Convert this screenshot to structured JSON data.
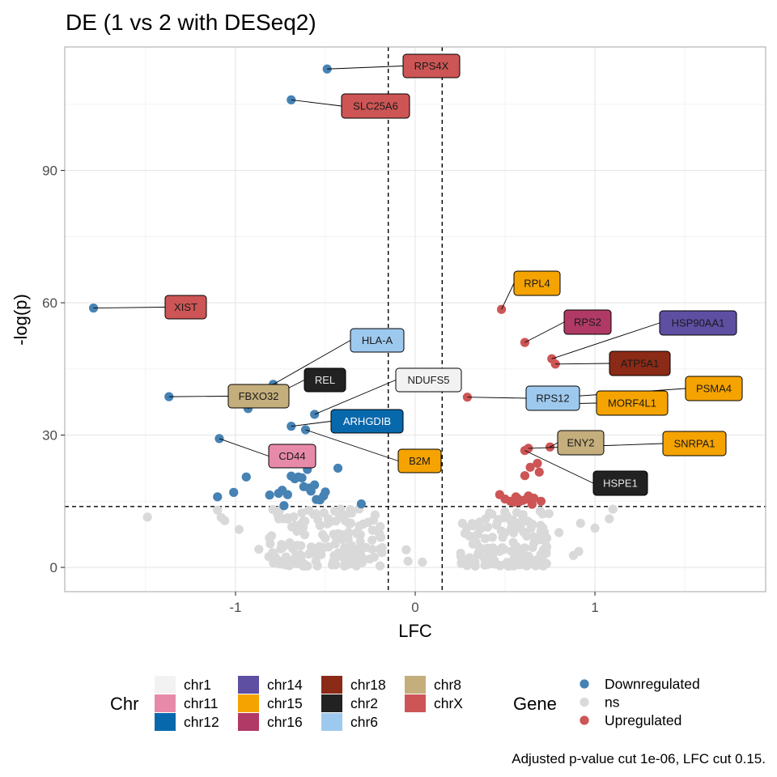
{
  "chart_data": {
    "type": "scatter",
    "title": "DE (1 vs 2 with DESeq2)",
    "xlabel": "LFC",
    "ylabel": "-log(p)",
    "xlim": [
      -1.95,
      1.95
    ],
    "ylim": [
      -5.5,
      118
    ],
    "x_ticks": [
      -1,
      0,
      1
    ],
    "x_tick_labels": [
      "-1",
      "0",
      "1"
    ],
    "y_ticks": [
      0,
      30,
      60,
      90
    ],
    "y_tick_labels": [
      "0",
      "30",
      "60",
      "90"
    ],
    "grid": true,
    "thresholds": {
      "lfc": [
        -0.15,
        0.15
      ],
      "neg_log_p": 13.8
    },
    "caption": "Adjusted p-value cut 1e-06, LFC cut 0.15.",
    "gene_colors": {
      "Downregulated": "#4682b4",
      "ns": "#d9d9d9",
      "Upregulated": "#cd5555"
    },
    "chr_colors": {
      "chr1": "#f2f2f2",
      "chr11": "#e78aa9",
      "chr12": "#0868ac",
      "chr14": "#5e4fa2",
      "chr15": "#f5a300",
      "chr16": "#b03a65",
      "chr18": "#8b2a16",
      "chr2": "#222222",
      "chr6": "#9ec9ef",
      "chr8": "#c4ae7c",
      "chrX": "#cd5555"
    },
    "legend": {
      "chr_title": "Chr",
      "chr_entries": [
        "chr1",
        "chr11",
        "chr12",
        "chr14",
        "chr15",
        "chr16",
        "chr18",
        "chr2",
        "chr6",
        "chr8",
        "chrX"
      ],
      "gene_title": "Gene",
      "gene_entries": [
        "Downregulated",
        "ns",
        "Upregulated"
      ],
      "position": "bottom"
    },
    "labeled_points": [
      {
        "gene": "RPS4X",
        "x": -0.49,
        "y": 113.0,
        "chr": "chrX",
        "status": "Downregulated"
      },
      {
        "gene": "SLC25A6",
        "x": -0.69,
        "y": 106.0,
        "chr": "chrX",
        "status": "Downregulated"
      },
      {
        "gene": "XIST",
        "x": -1.79,
        "y": 58.8,
        "chr": "chrX",
        "status": "Downregulated"
      },
      {
        "gene": "HLA-A",
        "x": -0.79,
        "y": 41.5,
        "chr": "chr6",
        "status": "Downregulated"
      },
      {
        "gene": "FBXO32",
        "x": -1.37,
        "y": 38.7,
        "chr": "chr8",
        "status": "Downregulated"
      },
      {
        "gene": "REL",
        "x": -0.93,
        "y": 36.0,
        "chr": "chr2",
        "status": "Downregulated"
      },
      {
        "gene": "NDUFS5",
        "x": -0.56,
        "y": 34.7,
        "chr": "chr1",
        "status": "Downregulated"
      },
      {
        "gene": "ARHGDIB",
        "x": -0.69,
        "y": 32.0,
        "chr": "chr12",
        "status": "Downregulated"
      },
      {
        "gene": "B2M",
        "x": -0.61,
        "y": 31.2,
        "chr": "chr15",
        "status": "Downregulated"
      },
      {
        "gene": "CD44",
        "x": -1.09,
        "y": 29.2,
        "chr": "chr11",
        "status": "Downregulated"
      },
      {
        "gene": "RPL4",
        "x": 0.48,
        "y": 58.5,
        "chr": "chr15",
        "status": "Upregulated"
      },
      {
        "gene": "RPS2",
        "x": 0.61,
        "y": 51.0,
        "chr": "chr16",
        "status": "Upregulated"
      },
      {
        "gene": "HSP90AA1",
        "x": 0.76,
        "y": 47.3,
        "chr": "chr14",
        "status": "Upregulated"
      },
      {
        "gene": "ATP5A1",
        "x": 0.78,
        "y": 46.1,
        "chr": "chr18",
        "status": "Upregulated"
      },
      {
        "gene": "PSMA4",
        "x": 0.71,
        "y": 38.3,
        "chr": "chr15",
        "status": "Upregulated"
      },
      {
        "gene": "RPS12",
        "x": 0.29,
        "y": 38.6,
        "chr": "chr6",
        "status": "Upregulated"
      },
      {
        "gene": "MORF4L1",
        "x": 0.71,
        "y": 37.0,
        "chr": "chr15",
        "status": "Upregulated"
      },
      {
        "gene": "ENY2",
        "x": 0.75,
        "y": 27.3,
        "chr": "chr8",
        "status": "Upregulated"
      },
      {
        "gene": "SNRPA1",
        "x": 0.63,
        "y": 27.0,
        "chr": "chr15",
        "status": "Upregulated"
      },
      {
        "gene": "HSPE1",
        "x": 0.61,
        "y": 26.5,
        "chr": "chr2",
        "status": "Upregulated"
      }
    ],
    "down_points": [
      [
        -1.1,
        16.0
      ],
      [
        -1.01,
        17.0
      ],
      [
        -0.94,
        20.5
      ],
      [
        -0.81,
        16.4
      ],
      [
        -0.76,
        16.8
      ],
      [
        -0.74,
        17.5
      ],
      [
        -0.73,
        14.0
      ],
      [
        -0.71,
        16.5
      ],
      [
        -0.69,
        20.7
      ],
      [
        -0.67,
        20.1
      ],
      [
        -0.65,
        20.5
      ],
      [
        -0.63,
        20.3
      ],
      [
        -0.62,
        18.3
      ],
      [
        -0.6,
        22.2
      ],
      [
        -0.59,
        18.0
      ],
      [
        -0.58,
        17.3
      ],
      [
        -0.56,
        18.7
      ],
      [
        -0.55,
        15.4
      ],
      [
        -0.53,
        15.3
      ],
      [
        -0.51,
        16.2
      ],
      [
        -0.5,
        17.1
      ],
      [
        -0.43,
        22.5
      ],
      [
        -0.3,
        14.4
      ]
    ],
    "up_points": [
      [
        0.47,
        16.5
      ],
      [
        0.5,
        15.5
      ],
      [
        0.53,
        15.0
      ],
      [
        0.55,
        14.8
      ],
      [
        0.56,
        16.0
      ],
      [
        0.57,
        15.6
      ],
      [
        0.58,
        14.9
      ],
      [
        0.6,
        15.2
      ],
      [
        0.61,
        20.8
      ],
      [
        0.62,
        15.5
      ],
      [
        0.63,
        16.2
      ],
      [
        0.64,
        22.7
      ],
      [
        0.65,
        14.3
      ],
      [
        0.66,
        15.7
      ],
      [
        0.68,
        23.6
      ],
      [
        0.69,
        21.6
      ],
      [
        0.7,
        15.0
      ]
    ]
  }
}
